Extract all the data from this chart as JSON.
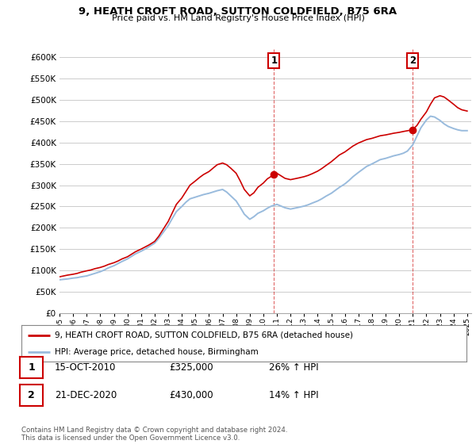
{
  "title": "9, HEATH CROFT ROAD, SUTTON COLDFIELD, B75 6RA",
  "subtitle": "Price paid vs. HM Land Registry's House Price Index (HPI)",
  "ylim": [
    0,
    620000
  ],
  "yticks": [
    0,
    50000,
    100000,
    150000,
    200000,
    250000,
    300000,
    350000,
    400000,
    450000,
    500000,
    550000,
    600000
  ],
  "background_color": "#ffffff",
  "grid_color": "#cccccc",
  "red_color": "#cc0000",
  "blue_color": "#99bbdd",
  "annotation1": {
    "label": "1",
    "date": "15-OCT-2010",
    "price": "£325,000",
    "pct": "26% ↑ HPI"
  },
  "annotation2": {
    "label": "2",
    "date": "21-DEC-2020",
    "price": "£430,000",
    "pct": "14% ↑ HPI"
  },
  "legend_line1": "9, HEATH CROFT ROAD, SUTTON COLDFIELD, B75 6RA (detached house)",
  "legend_line2": "HPI: Average price, detached house, Birmingham",
  "footer": "Contains HM Land Registry data © Crown copyright and database right 2024.\nThis data is licensed under the Open Government Licence v3.0.",
  "red_x": [
    1995.0,
    1995.3,
    1995.6,
    1996.0,
    1996.3,
    1996.6,
    1997.0,
    1997.3,
    1997.6,
    1998.0,
    1998.3,
    1998.6,
    1999.0,
    1999.3,
    1999.6,
    2000.0,
    2000.3,
    2000.6,
    2001.0,
    2001.3,
    2001.6,
    2002.0,
    2002.3,
    2002.6,
    2003.0,
    2003.3,
    2003.6,
    2004.0,
    2004.3,
    2004.6,
    2005.0,
    2005.3,
    2005.6,
    2006.0,
    2006.3,
    2006.6,
    2007.0,
    2007.3,
    2007.6,
    2008.0,
    2008.3,
    2008.6,
    2009.0,
    2009.3,
    2009.6,
    2010.0,
    2010.3,
    2010.79,
    2011.0,
    2011.3,
    2011.6,
    2012.0,
    2012.3,
    2012.6,
    2013.0,
    2013.3,
    2013.6,
    2014.0,
    2014.3,
    2014.6,
    2015.0,
    2015.3,
    2015.6,
    2016.0,
    2016.3,
    2016.6,
    2017.0,
    2017.3,
    2017.6,
    2018.0,
    2018.3,
    2018.6,
    2019.0,
    2019.3,
    2019.6,
    2020.0,
    2020.3,
    2020.97,
    2021.3,
    2021.6,
    2022.0,
    2022.3,
    2022.6,
    2023.0,
    2023.3,
    2023.6,
    2024.0,
    2024.3,
    2024.6,
    2025.0
  ],
  "red_y": [
    85000,
    87000,
    89000,
    91000,
    93000,
    96000,
    99000,
    101000,
    104000,
    107000,
    110000,
    114000,
    118000,
    122000,
    127000,
    132000,
    138000,
    144000,
    150000,
    155000,
    160000,
    168000,
    180000,
    195000,
    215000,
    235000,
    255000,
    270000,
    285000,
    300000,
    310000,
    318000,
    325000,
    332000,
    340000,
    348000,
    352000,
    348000,
    340000,
    328000,
    310000,
    290000,
    275000,
    282000,
    295000,
    305000,
    315000,
    325000,
    328000,
    322000,
    316000,
    313000,
    315000,
    317000,
    320000,
    323000,
    327000,
    333000,
    339000,
    346000,
    355000,
    363000,
    371000,
    378000,
    385000,
    392000,
    399000,
    403000,
    407000,
    410000,
    413000,
    416000,
    418000,
    420000,
    422000,
    424000,
    426000,
    430000,
    440000,
    455000,
    472000,
    490000,
    505000,
    510000,
    507000,
    500000,
    490000,
    482000,
    477000,
    474000
  ],
  "blue_x": [
    1995.0,
    1995.3,
    1995.6,
    1996.0,
    1996.3,
    1996.6,
    1997.0,
    1997.3,
    1997.6,
    1998.0,
    1998.3,
    1998.6,
    1999.0,
    1999.3,
    1999.6,
    2000.0,
    2000.3,
    2000.6,
    2001.0,
    2001.3,
    2001.6,
    2002.0,
    2002.3,
    2002.6,
    2003.0,
    2003.3,
    2003.6,
    2004.0,
    2004.3,
    2004.6,
    2005.0,
    2005.3,
    2005.6,
    2006.0,
    2006.3,
    2006.6,
    2007.0,
    2007.3,
    2007.6,
    2008.0,
    2008.3,
    2008.6,
    2009.0,
    2009.3,
    2009.6,
    2010.0,
    2010.3,
    2010.6,
    2011.0,
    2011.3,
    2011.6,
    2012.0,
    2012.3,
    2012.6,
    2013.0,
    2013.3,
    2013.6,
    2014.0,
    2014.3,
    2014.6,
    2015.0,
    2015.3,
    2015.6,
    2016.0,
    2016.3,
    2016.6,
    2017.0,
    2017.3,
    2017.6,
    2018.0,
    2018.3,
    2018.6,
    2019.0,
    2019.3,
    2019.6,
    2020.0,
    2020.3,
    2020.6,
    2021.0,
    2021.3,
    2021.6,
    2022.0,
    2022.3,
    2022.6,
    2023.0,
    2023.3,
    2023.6,
    2024.0,
    2024.3,
    2024.6,
    2025.0
  ],
  "blue_y": [
    78000,
    79000,
    80000,
    82000,
    83000,
    85000,
    87000,
    90000,
    93000,
    97000,
    101000,
    106000,
    111000,
    116000,
    121000,
    127000,
    133000,
    139000,
    145000,
    150000,
    156000,
    164000,
    175000,
    188000,
    205000,
    222000,
    238000,
    250000,
    260000,
    268000,
    272000,
    275000,
    278000,
    281000,
    284000,
    287000,
    290000,
    284000,
    275000,
    263000,
    248000,
    232000,
    220000,
    226000,
    234000,
    240000,
    246000,
    251000,
    255000,
    251000,
    247000,
    244000,
    246000,
    248000,
    251000,
    254000,
    258000,
    263000,
    268000,
    274000,
    281000,
    288000,
    295000,
    303000,
    311000,
    320000,
    330000,
    337000,
    344000,
    350000,
    355000,
    360000,
    363000,
    366000,
    369000,
    372000,
    375000,
    380000,
    395000,
    415000,
    435000,
    453000,
    462000,
    460000,
    452000,
    444000,
    438000,
    433000,
    430000,
    428000,
    428000
  ],
  "sale1_x": 2010.79,
  "sale1_y": 325000,
  "sale2_x": 2020.97,
  "sale2_y": 430000,
  "xtick_years": [
    1995,
    1996,
    1997,
    1998,
    1999,
    2000,
    2001,
    2002,
    2003,
    2004,
    2005,
    2006,
    2007,
    2008,
    2009,
    2010,
    2011,
    2012,
    2013,
    2014,
    2015,
    2016,
    2017,
    2018,
    2019,
    2020,
    2021,
    2022,
    2023,
    2024,
    2025
  ]
}
